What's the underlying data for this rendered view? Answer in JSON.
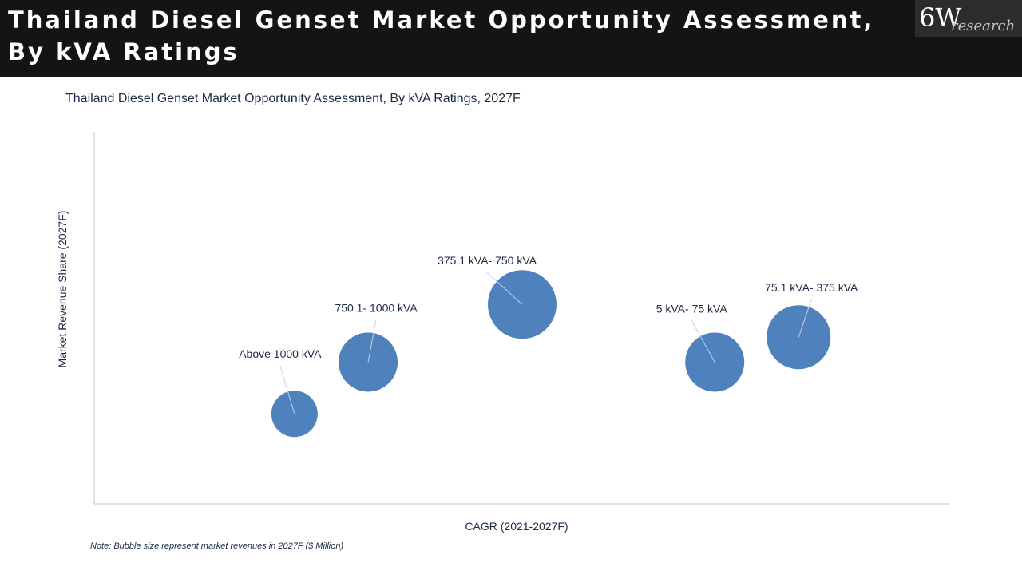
{
  "header": {
    "title": "Thailand Diesel Genset Market Opportunity Assessment, By kVA Ratings",
    "logo_main": "6W",
    "logo_sub": "research"
  },
  "colors": {
    "header_bg": "#141414",
    "bubble": "#4f81bd",
    "text": "#1c2a44"
  },
  "chart_data": {
    "type": "scatter",
    "title": "Thailand Diesel Genset Market Opportunity Assessment, By kVA Ratings, 2027F",
    "xlabel": "CAGR (2021-2027F)",
    "ylabel": "Market Revenue Share (2027F)",
    "xlim": [
      0,
      100
    ],
    "ylim": [
      0,
      100
    ],
    "grid": false,
    "note": "Note: Bubble size represent market revenues in 2027F ($ Million)",
    "series": [
      {
        "name": "kVA Ratings",
        "points": [
          {
            "label": "Above 1000 kVA",
            "x": 23.4,
            "y": 24.2,
            "size": 29
          },
          {
            "label": "750.1- 1000 kVA",
            "x": 32.0,
            "y": 38.1,
            "size": 37
          },
          {
            "label": "375.1 kVA- 750 kVA",
            "x": 50.0,
            "y": 53.6,
            "size": 43
          },
          {
            "label": "5 kVA- 75 kVA",
            "x": 72.5,
            "y": 38.1,
            "size": 37
          },
          {
            "label": "75.1 kVA- 375 kVA",
            "x": 82.3,
            "y": 44.8,
            "size": 40
          }
        ]
      }
    ]
  }
}
